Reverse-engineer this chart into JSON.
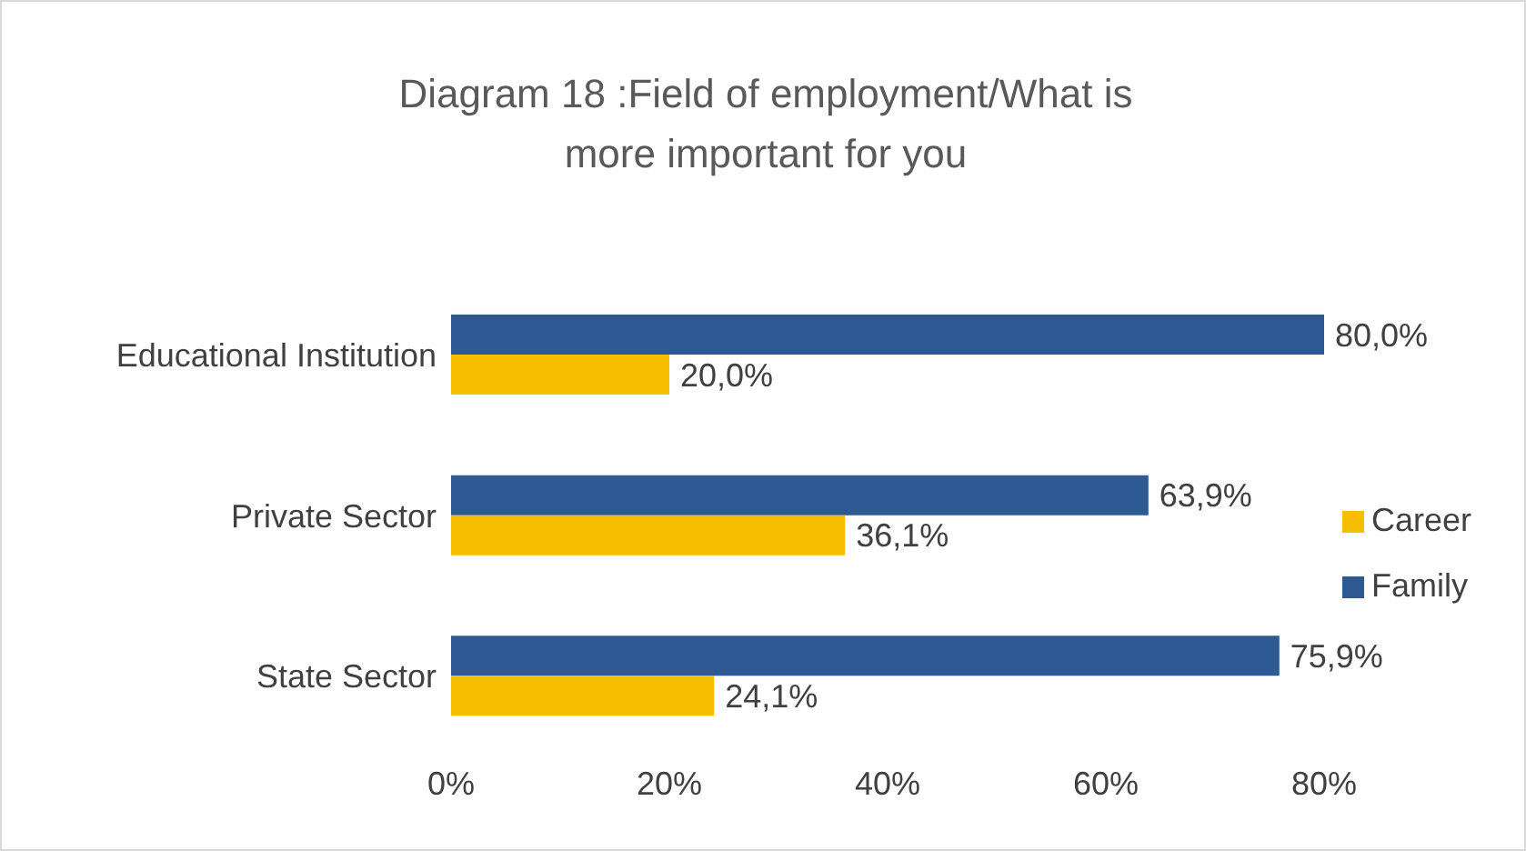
{
  "chart_data": {
    "type": "bar",
    "orientation": "horizontal",
    "title": "Diagram 18 :Field of employment/What is more important for you",
    "categories": [
      "Educational Institution",
      "Private Sector",
      "State Sector"
    ],
    "series": [
      {
        "name": "Family",
        "color": "#2e5a94",
        "values": [
          80.0,
          63.9,
          75.9
        ],
        "value_labels": [
          "80,0%",
          "63,9%",
          "75,9%"
        ]
      },
      {
        "name": "Career",
        "color": "#f5bf00",
        "values": [
          20.0,
          36.1,
          24.1
        ],
        "value_labels": [
          "20,0%",
          "36,1%",
          "24,1%"
        ]
      }
    ],
    "xlim": [
      0,
      80
    ],
    "xticks": [
      {
        "value": 0,
        "label": "0%"
      },
      {
        "value": 20,
        "label": "20%"
      },
      {
        "value": 40,
        "label": "40%"
      },
      {
        "value": 60,
        "label": "60%"
      },
      {
        "value": 80,
        "label": "80%"
      }
    ],
    "grid": false,
    "legend": "right"
  }
}
